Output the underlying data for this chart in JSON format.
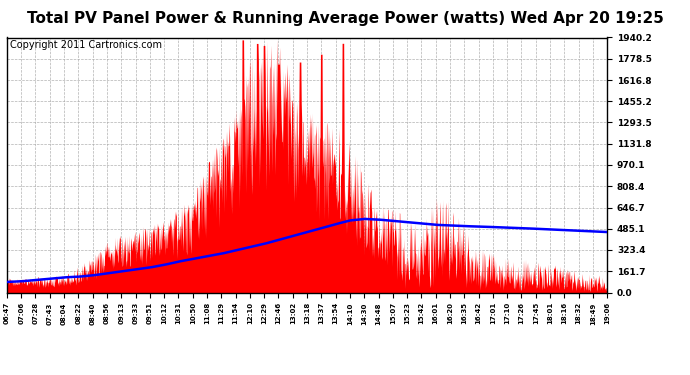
{
  "title": "Total PV Panel Power & Running Average Power (watts) Wed Apr 20 19:25",
  "copyright": "Copyright 2011 Cartronics.com",
  "y_max": 1940.2,
  "y_min": 0.0,
  "y_ticks": [
    0.0,
    161.7,
    323.4,
    485.1,
    646.7,
    808.4,
    970.1,
    1131.8,
    1293.5,
    1455.2,
    1616.8,
    1778.5,
    1940.2
  ],
  "bar_color": "#FF0000",
  "line_color": "#0000FF",
  "background_color": "#FFFFFF",
  "grid_color": "#AAAAAA",
  "title_fontsize": 11,
  "copyright_fontsize": 7,
  "x_labels": [
    "06:47",
    "07:06",
    "07:28",
    "07:43",
    "08:04",
    "08:22",
    "08:40",
    "08:56",
    "09:13",
    "09:33",
    "09:51",
    "10:12",
    "10:31",
    "10:50",
    "11:08",
    "11:29",
    "11:54",
    "12:10",
    "12:29",
    "12:46",
    "13:02",
    "13:18",
    "13:37",
    "13:54",
    "14:10",
    "14:30",
    "14:48",
    "15:07",
    "15:23",
    "15:42",
    "16:01",
    "16:20",
    "16:35",
    "16:42",
    "17:01",
    "17:10",
    "17:26",
    "17:45",
    "18:01",
    "18:16",
    "18:32",
    "18:49",
    "19:06"
  ],
  "running_avg_points": [
    80,
    85,
    95,
    105,
    115,
    120,
    130,
    145,
    160,
    175,
    190,
    210,
    235,
    255,
    275,
    295,
    320,
    345,
    370,
    400,
    430,
    460,
    490,
    520,
    548,
    560,
    555,
    545,
    535,
    525,
    515,
    510,
    505,
    502,
    498,
    494,
    490,
    485,
    480,
    475,
    470,
    465,
    460
  ],
  "pv_envelope": [
    130,
    120,
    125,
    130,
    140,
    200,
    280,
    390,
    450,
    480,
    520,
    560,
    650,
    700,
    1050,
    1200,
    1400,
    1800,
    1940,
    1940,
    1600,
    1400,
    1350,
    1300,
    1250,
    900,
    700,
    650,
    600,
    500,
    750,
    800,
    500,
    350,
    300,
    280,
    260,
    240,
    220,
    200,
    180,
    160,
    100
  ]
}
